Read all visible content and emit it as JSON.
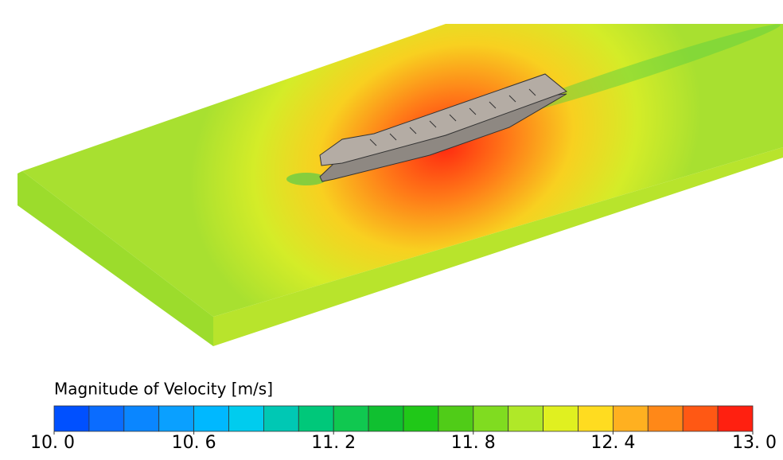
{
  "legend": {
    "title": "Magnitude of Velocity [m/s]",
    "range": [
      10.0,
      13.0
    ],
    "ticks": [
      {
        "value": 10.0,
        "label": "10. 0"
      },
      {
        "value": 10.6,
        "label": "10. 6"
      },
      {
        "value": 11.2,
        "label": "11. 2"
      },
      {
        "value": 11.8,
        "label": "11. 8"
      },
      {
        "value": 12.4,
        "label": "12. 4"
      },
      {
        "value": 13.0,
        "label": "13. 0"
      }
    ],
    "colors": [
      "#0050ff",
      "#0a6cff",
      "#0a86ff",
      "#0aa0ff",
      "#00b8ff",
      "#00ccee",
      "#00c8b4",
      "#00c87a",
      "#10c850",
      "#10c030",
      "#20c818",
      "#50cc18",
      "#80dc20",
      "#b0e828",
      "#e0f020",
      "#ffdc20",
      "#ffb020",
      "#ff8818",
      "#ff5814",
      "#ff2010"
    ]
  }
}
